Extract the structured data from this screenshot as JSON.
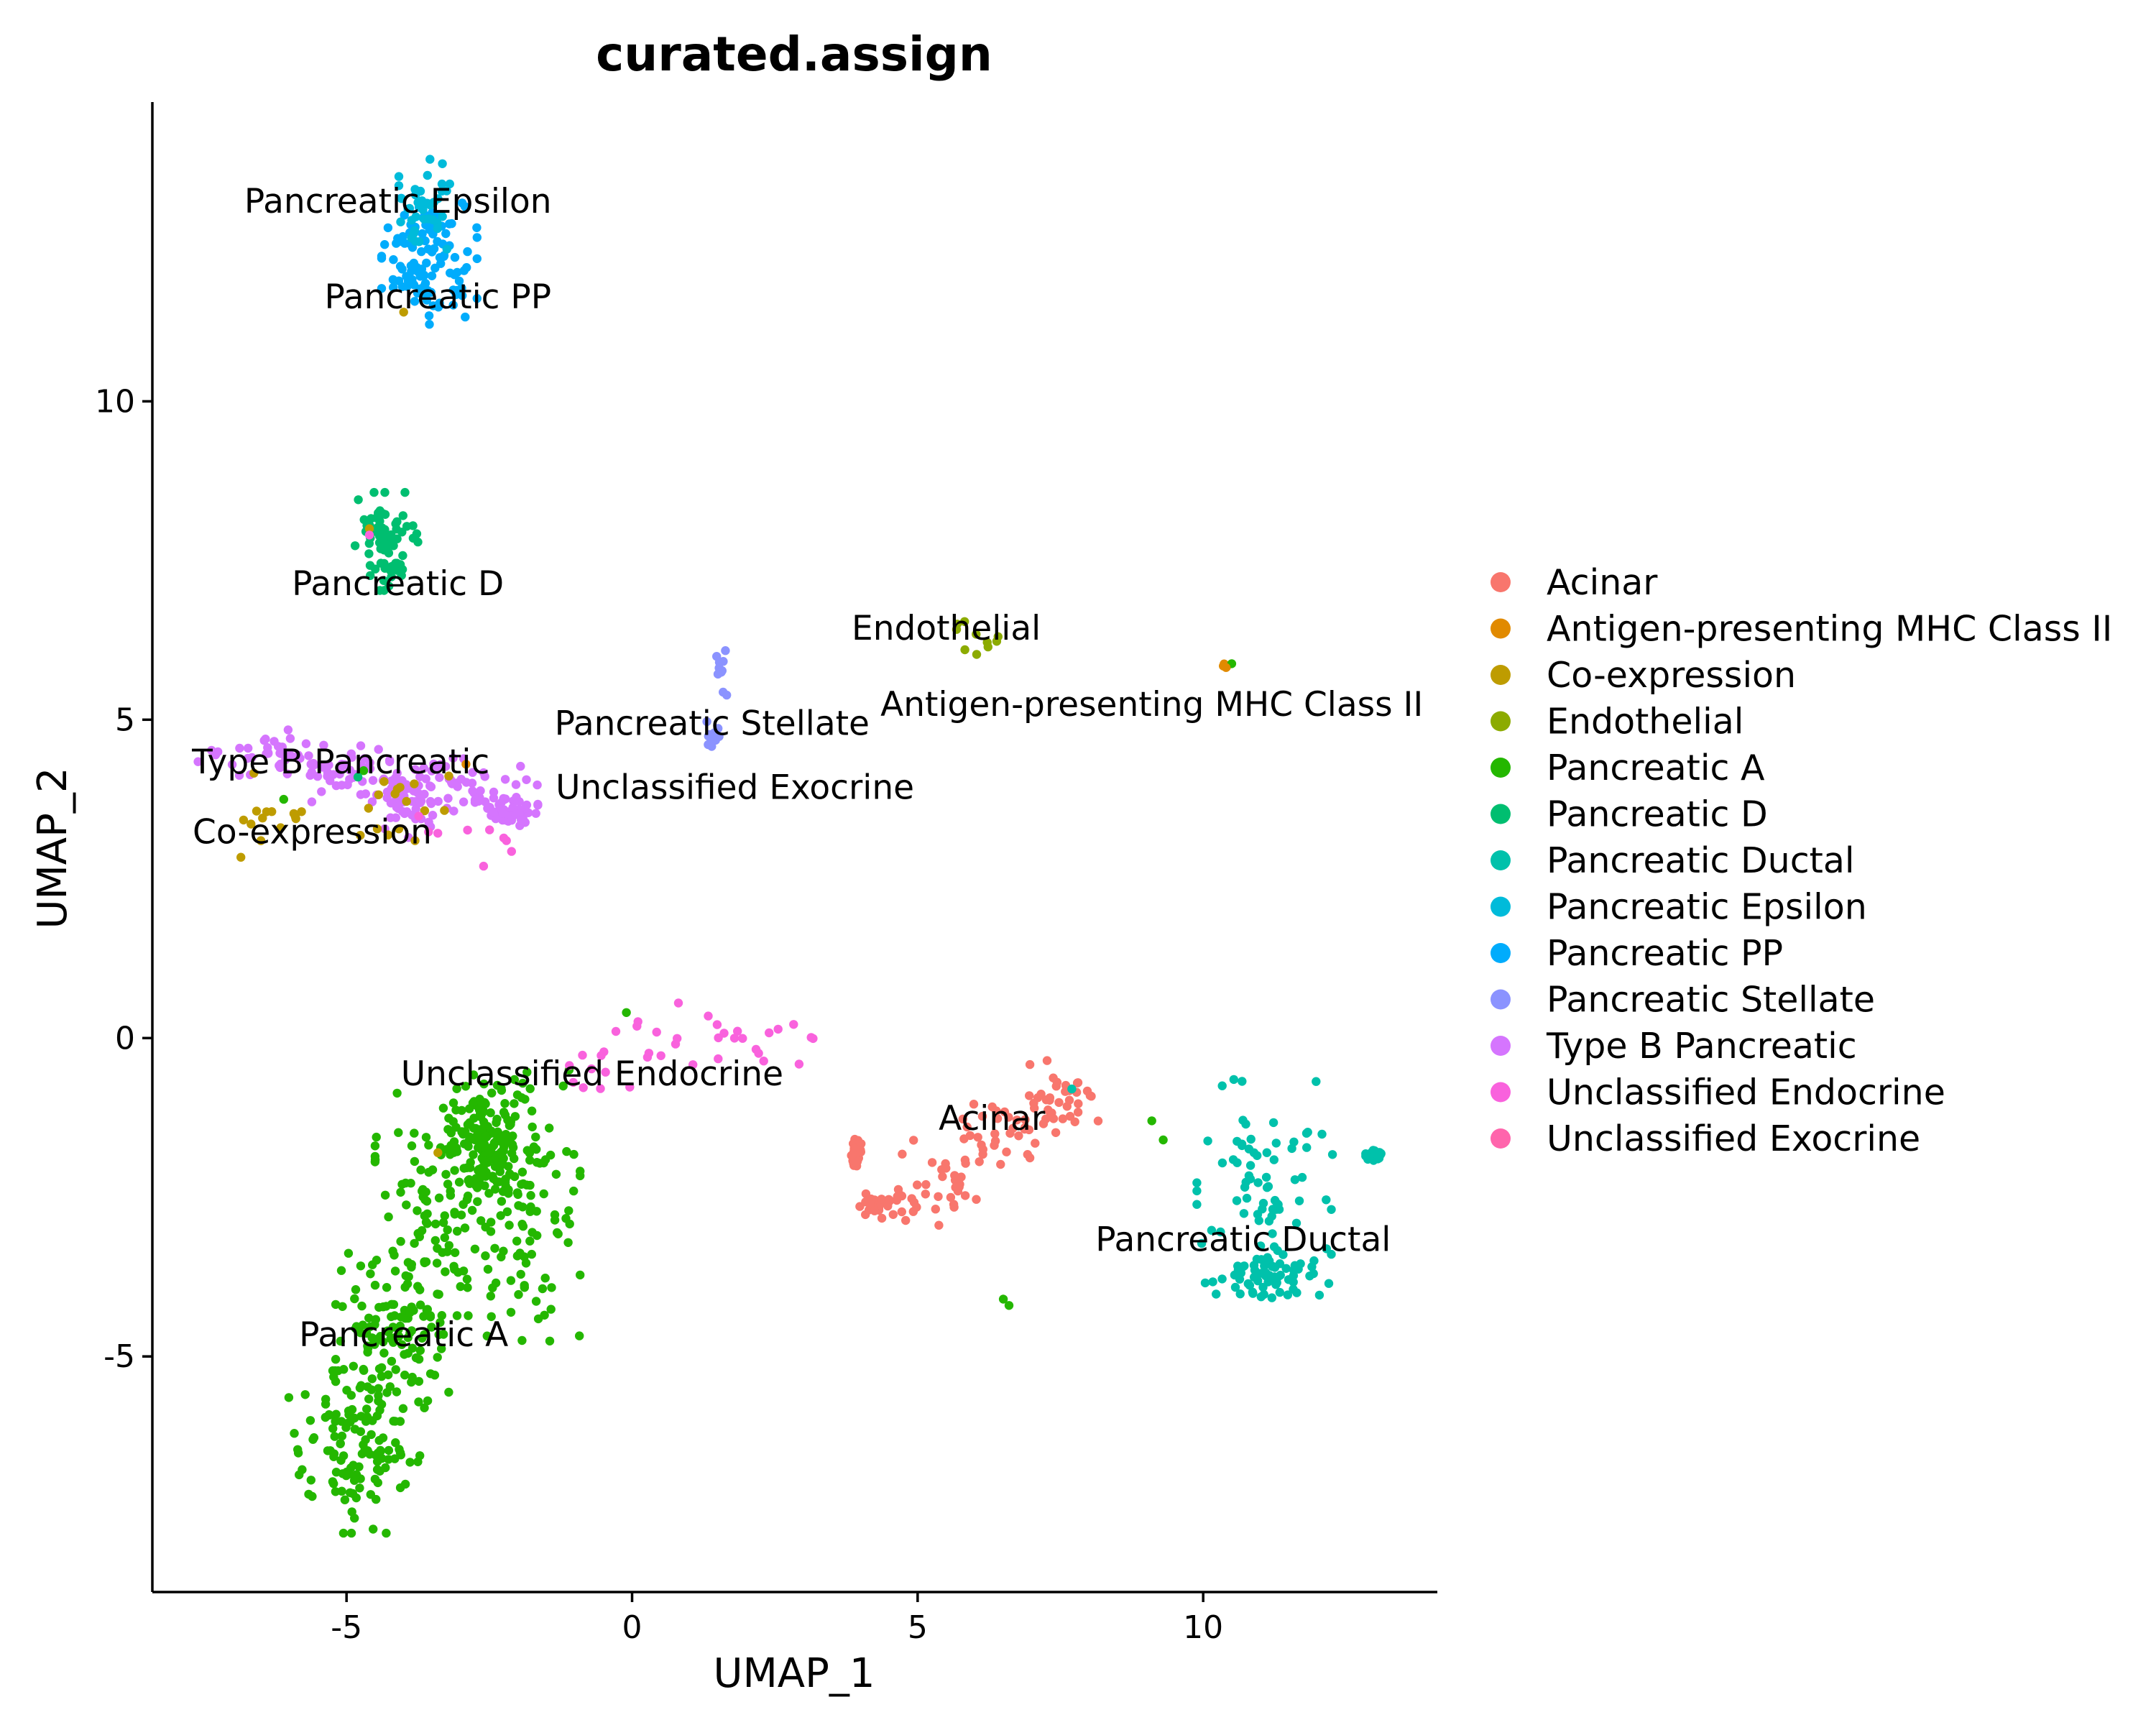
{
  "chart_data": {
    "type": "scatter",
    "title": "curated.assign",
    "xlabel": "UMAP_1",
    "ylabel": "UMAP_2",
    "xlim": [
      -8.4,
      14.1
    ],
    "ylim": [
      -8.7,
      14.7
    ],
    "xticks": [
      -5,
      0,
      5,
      10
    ],
    "yticks": [
      -5,
      0,
      5,
      10
    ],
    "xtick_labels": [
      "-5",
      "0",
      "5",
      "10"
    ],
    "ytick_labels": [
      "-5",
      "0",
      "5",
      "10"
    ],
    "grid": false,
    "legend_position": "right",
    "legend": [
      {
        "name": "Acinar",
        "color": "#F8766D"
      },
      {
        "name": "Antigen-presenting MHC Class II",
        "color": "#E18A00"
      },
      {
        "name": "Co-expression",
        "color": "#BE9C00"
      },
      {
        "name": "Endothelial",
        "color": "#8CAB00"
      },
      {
        "name": "Pancreatic A",
        "color": "#24B700"
      },
      {
        "name": "Pancreatic D",
        "color": "#00BE70"
      },
      {
        "name": "Pancreatic Ductal",
        "color": "#00C1AB"
      },
      {
        "name": "Pancreatic Epsilon",
        "color": "#00BBDA"
      },
      {
        "name": "Pancreatic PP",
        "color": "#00ACFC"
      },
      {
        "name": "Pancreatic Stellate",
        "color": "#8B93FF"
      },
      {
        "name": "Type B Pancreatic",
        "color": "#D575FE"
      },
      {
        "name": "Unclassified Endocrine",
        "color": "#F962DD"
      },
      {
        "name": "Unclassified Exocrine",
        "color": "#FF65AC"
      }
    ],
    "cluster_labels": [
      {
        "text": "Pancreatic Epsilon",
        "x": -4.1,
        "y": 13.1
      },
      {
        "text": "Pancreatic PP",
        "x": -3.4,
        "y": 11.6
      },
      {
        "text": "Pancreatic D",
        "x": -4.1,
        "y": 7.1
      },
      {
        "text": "Endothelial",
        "x": 5.5,
        "y": 6.4
      },
      {
        "text": "Antigen-presenting MHC Class II",
        "x": 9.1,
        "y": 5.2
      },
      {
        "text": "Pancreatic Stellate",
        "x": 1.4,
        "y": 4.9
      },
      {
        "text": "Type B Pancreatic",
        "x": -5.1,
        "y": 4.3
      },
      {
        "text": "Unclassified Exocrine",
        "x": 1.8,
        "y": 3.9
      },
      {
        "text": "Co-expression",
        "x": -5.6,
        "y": 3.2
      },
      {
        "text": "Unclassified Endocrine",
        "x": -0.7,
        "y": -0.6
      },
      {
        "text": "Acinar",
        "x": 6.3,
        "y": -1.3
      },
      {
        "text": "Pancreatic Ductal",
        "x": 10.7,
        "y": -3.2
      },
      {
        "text": "Pancreatic A",
        "x": -4.0,
        "y": -4.7
      }
    ],
    "clusters": [
      {
        "series": "Pancreatic PP",
        "n": 110,
        "seed": 11,
        "blobs": [
          [
            -3.55,
            12.2,
            0.38,
            0.45
          ]
        ]
      },
      {
        "series": "Pancreatic Epsilon",
        "n": 40,
        "seed": 12,
        "blobs": [
          [
            -3.6,
            13.1,
            0.22,
            0.42
          ]
        ]
      },
      {
        "series": "Pancreatic D",
        "n": 75,
        "seed": 13,
        "blobs": [
          [
            -4.3,
            7.8,
            0.25,
            0.35
          ]
        ]
      },
      {
        "series": "Type B Pancreatic",
        "n": 230,
        "seed": 14,
        "blobs": [
          [
            -6.5,
            4.5,
            0.5,
            0.17
          ],
          [
            -5.0,
            4.15,
            0.6,
            0.2
          ],
          [
            -3.2,
            4.05,
            0.7,
            0.22
          ],
          [
            -4.0,
            3.7,
            0.35,
            0.25
          ],
          [
            -2.2,
            3.6,
            0.25,
            0.12
          ]
        ]
      },
      {
        "series": "Co-expression",
        "n": 28,
        "seed": 15,
        "blobs": [
          [
            -6.3,
            3.5,
            0.25,
            0.3
          ],
          [
            -4.2,
            3.7,
            0.6,
            0.3
          ]
        ]
      },
      {
        "series": "Pancreatic A",
        "n": 600,
        "seed": 16,
        "blobs": [
          [
            -4.8,
            -6.5,
            0.55,
            0.58
          ],
          [
            -4.2,
            -4.7,
            0.45,
            0.6
          ],
          [
            -3.4,
            -2.6,
            0.5,
            0.8
          ],
          [
            -1.9,
            -2.7,
            0.45,
            1.0
          ],
          [
            -2.6,
            -1.6,
            0.3,
            0.4
          ]
        ]
      },
      {
        "series": "Acinar",
        "n": 170,
        "seed": 17,
        "blobs": [
          [
            4.4,
            -2.6,
            0.35,
            0.12
          ],
          [
            5.5,
            -2.3,
            0.35,
            0.35
          ],
          [
            6.5,
            -1.5,
            0.4,
            0.22
          ],
          [
            7.5,
            -0.9,
            0.3,
            0.3
          ],
          [
            3.9,
            -1.8,
            0.05,
            0.1
          ]
        ]
      },
      {
        "series": "Pancreatic Ductal",
        "n": 200,
        "seed": 18,
        "blobs": [
          [
            11.1,
            -2.3,
            0.55,
            0.75
          ],
          [
            11.1,
            -3.7,
            0.5,
            0.2
          ],
          [
            13.0,
            -1.85,
            0.07,
            0.04
          ]
        ]
      },
      {
        "series": "Unclassified Endocrine",
        "n": 45,
        "seed": 19,
        "blobs": [
          [
            0.8,
            0.0,
            0.5,
            0.25
          ],
          [
            2.2,
            -0.1,
            0.45,
            0.2
          ],
          [
            -2.8,
            3.1,
            0.5,
            0.25
          ],
          [
            -0.7,
            -0.5,
            0.3,
            0.2
          ]
        ]
      },
      {
        "series": "Pancreatic Stellate",
        "n": 22,
        "seed": 20,
        "blobs": [
          [
            1.6,
            5.7,
            0.07,
            0.3
          ],
          [
            1.4,
            4.75,
            0.06,
            0.1
          ]
        ]
      },
      {
        "series": "Endothelial",
        "n": 10,
        "seed": 21,
        "blobs": [
          [
            6.1,
            6.3,
            0.25,
            0.2
          ]
        ]
      },
      {
        "series": "Antigen-presenting MHC Class II",
        "n": 5,
        "seed": 22,
        "blobs": [
          [
            -3.4,
            4.1,
            0.6,
            0.3
          ],
          [
            10.4,
            5.85,
            0.03,
            0.02
          ]
        ]
      }
    ],
    "extra_points": [
      {
        "series": "Pancreatic A",
        "points": [
          [
            -0.1,
            0.4
          ],
          [
            6.5,
            -4.1
          ],
          [
            6.6,
            -4.2
          ],
          [
            9.1,
            -1.3
          ],
          [
            9.3,
            -1.6
          ],
          [
            10.5,
            5.88
          ],
          [
            -6.1,
            3.75
          ],
          [
            -4.7,
            4.2
          ]
        ]
      },
      {
        "series": "Co-expression",
        "points": [
          [
            -4.0,
            11.4
          ],
          [
            -4.6,
            8.0
          ],
          [
            -3.4,
            -1.8
          ],
          [
            -6.5,
            3.1
          ],
          [
            -3.8,
            3.1
          ]
        ]
      },
      {
        "series": "Antigen-presenting MHC Class II",
        "points": [
          [
            10.4,
            5.82
          ]
        ]
      },
      {
        "series": "Pancreatic Ductal",
        "points": [
          [
            7.7,
            -0.8
          ]
        ]
      },
      {
        "series": "Unclassified Endocrine",
        "points": [
          [
            -4.6,
            7.9
          ],
          [
            -2.6,
            2.7
          ],
          [
            -2.2,
            3.1
          ]
        ]
      },
      {
        "series": "Pancreatic D",
        "points": [
          [
            -4.8,
            4.1
          ]
        ]
      }
    ]
  }
}
